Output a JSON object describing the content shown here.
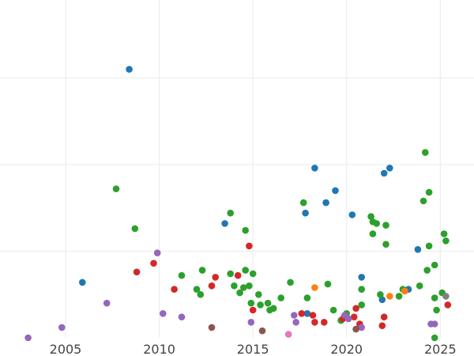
{
  "chart_data": {
    "type": "scatter",
    "title": "",
    "xlabel": "",
    "ylabel": "",
    "xlim": [
      2001.5,
      2026.8
    ],
    "ylim": [
      0,
      1.95
    ],
    "grid": true,
    "x_ticks": [
      {
        "value": 2005,
        "label": "2005"
      },
      {
        "value": 2010,
        "label": "2010"
      },
      {
        "value": 2015,
        "label": "2015"
      },
      {
        "value": 2020,
        "label": "2020"
      },
      {
        "value": 2025,
        "label": "2025"
      }
    ],
    "y_gridlines": [
      0.5,
      1.0,
      1.5
    ],
    "series": [
      {
        "color": "#1f77b4",
        "points": [
          [
            2005.9,
            0.32
          ],
          [
            2008.4,
            1.55
          ],
          [
            2013.5,
            0.66
          ],
          [
            2017.8,
            0.72
          ],
          [
            2018.3,
            0.98
          ],
          [
            2018.9,
            0.78
          ],
          [
            2019.4,
            0.85
          ],
          [
            2020.3,
            0.71
          ],
          [
            2020.8,
            0.35
          ],
          [
            2021.9,
            0.22
          ],
          [
            2022.0,
            0.95
          ],
          [
            2022.3,
            0.98
          ],
          [
            2023.3,
            0.28
          ],
          [
            2023.8,
            0.51
          ],
          [
            2017.9,
            0.14
          ]
        ]
      },
      {
        "color": "#2ca02c",
        "points": [
          [
            2007.7,
            0.86
          ],
          [
            2008.7,
            0.63
          ],
          [
            2011.2,
            0.36
          ],
          [
            2012.0,
            0.28
          ],
          [
            2012.2,
            0.25
          ],
          [
            2012.3,
            0.39
          ],
          [
            2013.8,
            0.72
          ],
          [
            2013.8,
            0.37
          ],
          [
            2014.0,
            0.3
          ],
          [
            2014.3,
            0.26
          ],
          [
            2014.5,
            0.29
          ],
          [
            2014.6,
            0.62
          ],
          [
            2014.6,
            0.39
          ],
          [
            2014.8,
            0.3
          ],
          [
            2014.9,
            0.2
          ],
          [
            2015.0,
            0.37
          ],
          [
            2015.3,
            0.25
          ],
          [
            2015.4,
            0.19
          ],
          [
            2015.8,
            0.2
          ],
          [
            2015.9,
            0.16
          ],
          [
            2016.1,
            0.17
          ],
          [
            2016.5,
            0.23
          ],
          [
            2017.0,
            0.32
          ],
          [
            2017.7,
            0.78
          ],
          [
            2017.9,
            0.23
          ],
          [
            2019.0,
            0.31
          ],
          [
            2019.3,
            0.16
          ],
          [
            2019.7,
            0.1
          ],
          [
            2020.0,
            0.14
          ],
          [
            2020.8,
            0.19
          ],
          [
            2020.8,
            0.28
          ],
          [
            2021.3,
            0.7
          ],
          [
            2021.4,
            0.67
          ],
          [
            2021.4,
            0.6
          ],
          [
            2021.6,
            0.66
          ],
          [
            2021.8,
            0.25
          ],
          [
            2022.1,
            0.54
          ],
          [
            2022.1,
            0.65
          ],
          [
            2022.8,
            0.24
          ],
          [
            2023.0,
            0.28
          ],
          [
            2023.9,
            0.3
          ],
          [
            2024.1,
            0.79
          ],
          [
            2024.2,
            1.07
          ],
          [
            2024.3,
            0.39
          ],
          [
            2024.4,
            0.53
          ],
          [
            2024.4,
            0.84
          ],
          [
            2024.7,
            0.42
          ],
          [
            2024.7,
            0.23
          ],
          [
            2024.8,
            0.16
          ],
          [
            2025.1,
            0.26
          ],
          [
            2025.2,
            0.6
          ],
          [
            2025.3,
            0.56
          ],
          [
            2024.7,
            0.0
          ]
        ]
      },
      {
        "color": "#d62728",
        "points": [
          [
            2008.8,
            0.38
          ],
          [
            2009.7,
            0.43
          ],
          [
            2010.8,
            0.28
          ],
          [
            2012.8,
            0.3
          ],
          [
            2013.0,
            0.35
          ],
          [
            2014.2,
            0.36
          ],
          [
            2014.8,
            0.53
          ],
          [
            2015.0,
            0.16
          ],
          [
            2017.6,
            0.14
          ],
          [
            2018.2,
            0.13
          ],
          [
            2018.3,
            0.09
          ],
          [
            2018.8,
            0.09
          ],
          [
            2019.8,
            0.11
          ],
          [
            2020.4,
            0.12
          ],
          [
            2020.5,
            0.17
          ],
          [
            2020.7,
            0.08
          ],
          [
            2021.9,
            0.07
          ],
          [
            2022.0,
            0.12
          ],
          [
            2025.4,
            0.19
          ]
        ]
      },
      {
        "color": "#9467bd",
        "points": [
          [
            2003.0,
            0.0
          ],
          [
            2004.8,
            0.06
          ],
          [
            2007.2,
            0.2
          ],
          [
            2009.9,
            0.49
          ],
          [
            2010.2,
            0.14
          ],
          [
            2011.2,
            0.12
          ],
          [
            2014.9,
            0.09
          ],
          [
            2017.2,
            0.13
          ],
          [
            2017.3,
            0.09
          ],
          [
            2019.9,
            0.13
          ],
          [
            2020.1,
            0.11
          ],
          [
            2020.8,
            0.06
          ],
          [
            2024.5,
            0.08
          ],
          [
            2024.7,
            0.08
          ]
        ]
      },
      {
        "color": "#ff7f0e",
        "points": [
          [
            2018.3,
            0.29
          ],
          [
            2022.3,
            0.24
          ],
          [
            2023.1,
            0.27
          ]
        ]
      },
      {
        "color": "#8c564b",
        "points": [
          [
            2012.8,
            0.06
          ],
          [
            2015.5,
            0.04
          ],
          [
            2020.5,
            0.05
          ]
        ]
      },
      {
        "color": "#e377c2",
        "points": [
          [
            2016.9,
            0.02
          ]
        ]
      },
      {
        "color": "#7f7f7f",
        "points": [
          [
            2025.3,
            0.24
          ]
        ]
      }
    ]
  }
}
